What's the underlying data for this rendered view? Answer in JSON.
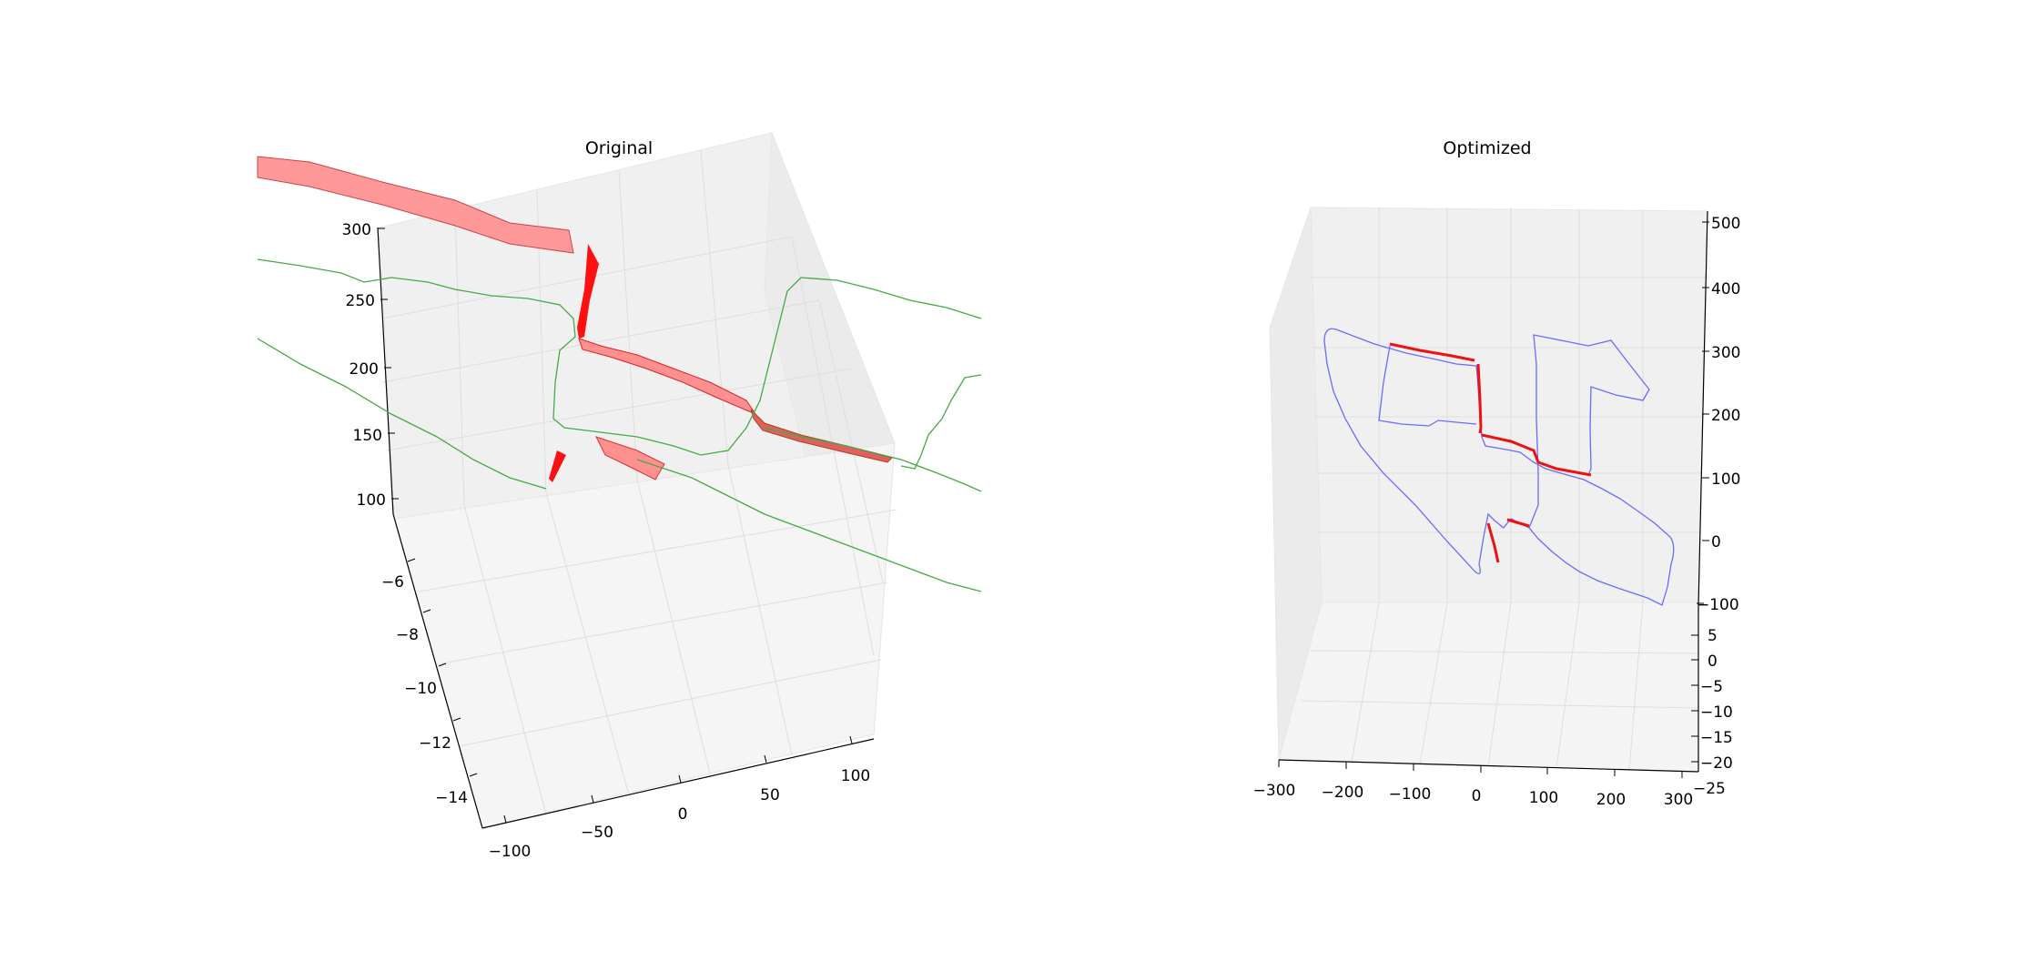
{
  "chart_data": [
    {
      "type": "line3d",
      "title": "Original",
      "grid": true,
      "z_ticks": [
        "100",
        "150",
        "200",
        "250",
        "300"
      ],
      "y_ticks": [
        "−6",
        "−8",
        "−10",
        "−12",
        "−14"
      ],
      "x_ticks": [
        "−100",
        "−50",
        "0",
        "50",
        "100"
      ],
      "zlim": [
        100,
        300
      ],
      "ylim": [
        -15,
        -5
      ],
      "xlim": [
        -110,
        110
      ],
      "colors": {
        "trajectory": "#2ca02c",
        "constraints": "#ff0000",
        "constraint_fill": "#ff8080"
      }
    },
    {
      "type": "line3d",
      "title": "Optimized",
      "grid": true,
      "z_ticks": [
        "500",
        "400",
        "300",
        "200",
        "100",
        "0",
        "−100"
      ],
      "y_ticks": [
        "5",
        "0",
        "−5",
        "−10",
        "−15",
        "−20",
        "−25"
      ],
      "x_ticks": [
        "−300",
        "−200",
        "−100",
        "0",
        "100",
        "200",
        "300"
      ],
      "zlim": [
        -100,
        500
      ],
      "ylim": [
        -25,
        5
      ],
      "xlim": [
        -300,
        300
      ],
      "colors": {
        "trajectory": "#6666ff",
        "constraints": "#ff0000"
      }
    }
  ]
}
